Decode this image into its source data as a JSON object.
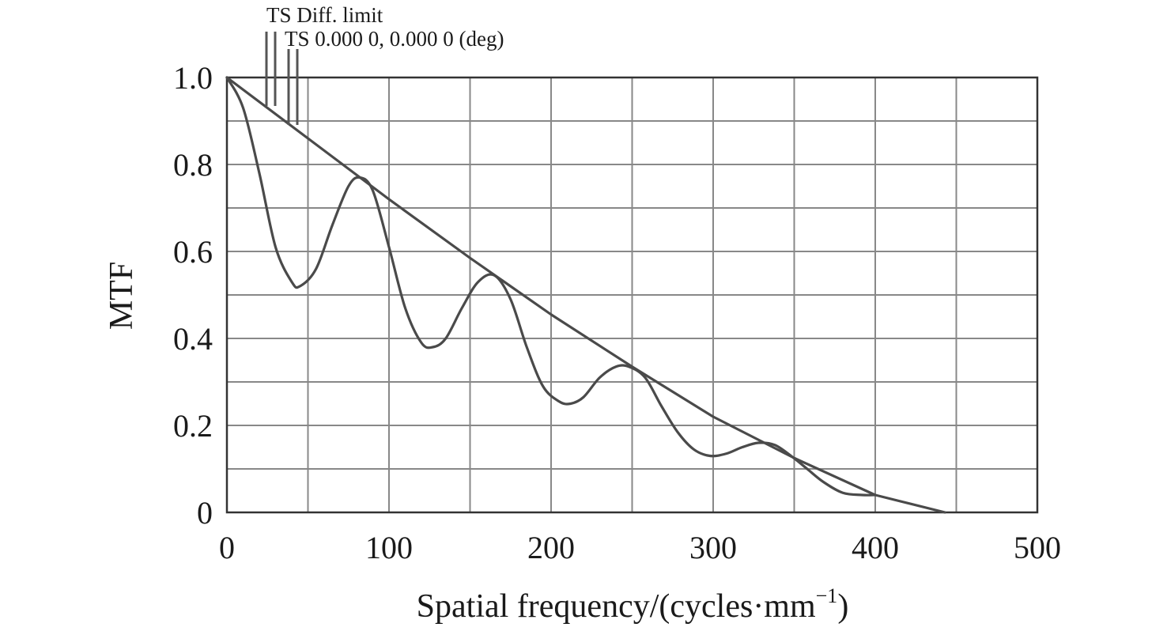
{
  "chart_data": {
    "type": "line",
    "xlabel": "Spatial frequency/(cycles·mm",
    "xlabel_sup": "−1",
    "xlabel_close": ")",
    "ylabel": "MTF",
    "xlim": [
      0,
      500
    ],
    "ylim": [
      0,
      1.0
    ],
    "x_ticks": [
      0,
      100,
      200,
      300,
      400,
      500
    ],
    "x_tick_labels": [
      "0",
      "100",
      "200",
      "300",
      "400",
      "500"
    ],
    "y_ticks": [
      0,
      0.2,
      0.4,
      0.6,
      0.8,
      1.0
    ],
    "y_tick_labels": [
      "0",
      "0.2",
      "0.4",
      "0.6",
      "0.8",
      "1.0"
    ],
    "x_grid_step": 50,
    "y_grid_step": 0.1,
    "grid": true,
    "legend_position": "top-left above plot",
    "legend": [
      "TS Diff. limit",
      "TS 0.000 0, 0.000 0 (deg)"
    ],
    "series": [
      {
        "name": "TS Diff. limit",
        "x": [
          0,
          50,
          100,
          150,
          200,
          250,
          300,
          350,
          400,
          443
        ],
        "y": [
          1.0,
          0.86,
          0.72,
          0.585,
          0.455,
          0.335,
          0.22,
          0.125,
          0.04,
          0.0
        ]
      },
      {
        "name": "TS 0.000 0, 0.000 0 (deg)",
        "x": [
          0,
          10,
          20,
          30,
          40,
          45,
          55,
          65,
          75,
          82,
          90,
          100,
          110,
          120,
          127,
          135,
          145,
          155,
          165,
          175,
          185,
          195,
          205,
          212,
          220,
          230,
          240,
          248,
          258,
          268,
          278,
          288,
          298,
          308,
          318,
          328,
          338,
          348,
          358,
          368,
          380,
          392,
          400
        ],
        "y": [
          1.0,
          0.93,
          0.78,
          0.61,
          0.53,
          0.52,
          0.56,
          0.66,
          0.75,
          0.77,
          0.74,
          0.61,
          0.47,
          0.39,
          0.38,
          0.4,
          0.47,
          0.53,
          0.545,
          0.49,
          0.38,
          0.29,
          0.255,
          0.25,
          0.265,
          0.31,
          0.335,
          0.335,
          0.31,
          0.245,
          0.185,
          0.145,
          0.13,
          0.135,
          0.15,
          0.16,
          0.155,
          0.13,
          0.1,
          0.07,
          0.045,
          0.04,
          0.04
        ]
      }
    ]
  }
}
